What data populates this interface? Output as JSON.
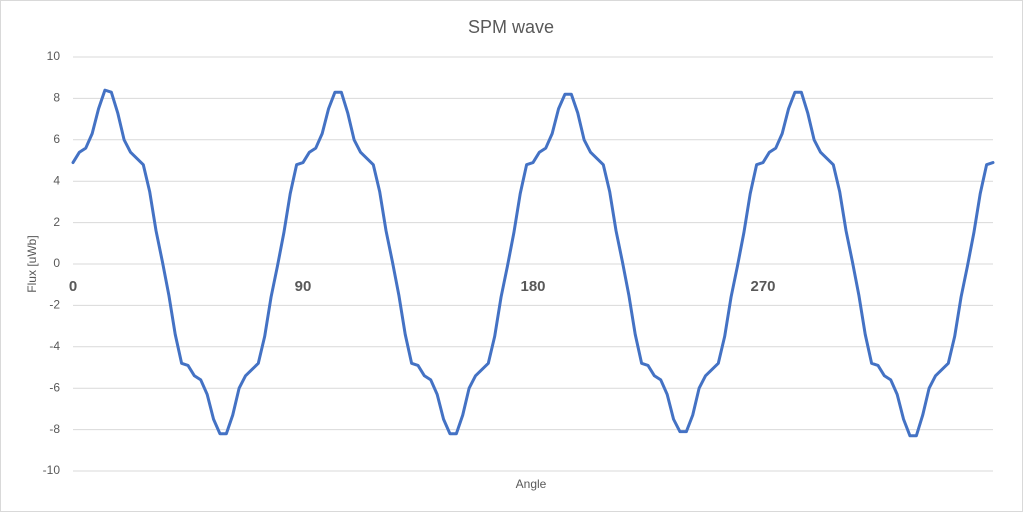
{
  "chart_data": {
    "type": "line",
    "title": "SPM wave",
    "x_label": "Angle",
    "y_label": "Flux [uWb]",
    "xlim": [
      0,
      360
    ],
    "xticks": [
      0,
      90,
      180,
      270
    ],
    "ylim": [
      -10,
      10
    ],
    "yticks": [
      -10,
      -8,
      -6,
      -4,
      -2,
      0,
      2,
      4,
      6,
      8,
      10
    ],
    "grid": true,
    "x": [
      0,
      2.5,
      5,
      7.5,
      10,
      12.5,
      15,
      17.5,
      20,
      22.5,
      25,
      27.5,
      30,
      32.5,
      35,
      37.5,
      40,
      42.5,
      45,
      47.5,
      50,
      52.5,
      55,
      57.5,
      60,
      62.5,
      65,
      67.5,
      70,
      72.5,
      75,
      77.5,
      80,
      82.5,
      85,
      87.5,
      90,
      92.5,
      95,
      97.5,
      100,
      102.5,
      105,
      107.5,
      110,
      112.5,
      115,
      117.5,
      120,
      122.5,
      125,
      127.5,
      130,
      132.5,
      135,
      137.5,
      140,
      142.5,
      145,
      147.5,
      150,
      152.5,
      155,
      157.5,
      160,
      162.5,
      165,
      167.5,
      170,
      172.5,
      175,
      177.5,
      180,
      182.5,
      185,
      187.5,
      190,
      192.5,
      195,
      197.5,
      200,
      202.5,
      205,
      207.5,
      210,
      212.5,
      215,
      217.5,
      220,
      222.5,
      225,
      227.5,
      230,
      232.5,
      235,
      237.5,
      240,
      242.5,
      245,
      247.5,
      250,
      252.5,
      255,
      257.5,
      260,
      262.5,
      265,
      267.5,
      270,
      272.5,
      275,
      277.5,
      280,
      282.5,
      285,
      287.5,
      290,
      292.5,
      295,
      297.5,
      300,
      302.5,
      305,
      307.5,
      310,
      312.5,
      315,
      317.5,
      320,
      322.5,
      325,
      327.5,
      330,
      332.5,
      335,
      337.5,
      340,
      342.5,
      345,
      347.5,
      350,
      352.5,
      355,
      357.5,
      360
    ],
    "series": [
      {
        "name": "Flux",
        "color": "#4472c4",
        "values": [
          4.9,
          5.4,
          5.6,
          6.3,
          7.5,
          8.4,
          8.3,
          7.3,
          6.0,
          5.4,
          5.1,
          4.8,
          3.5,
          1.6,
          0.1,
          -1.5,
          -3.4,
          -4.8,
          -4.9,
          -5.4,
          -5.6,
          -6.3,
          -7.5,
          -8.2,
          -8.2,
          -7.3,
          -6.0,
          -5.4,
          -5.1,
          -4.8,
          -3.5,
          -1.6,
          -0.1,
          1.5,
          3.4,
          4.8,
          4.9,
          5.4,
          5.6,
          6.3,
          7.5,
          8.3,
          8.3,
          7.3,
          6.0,
          5.4,
          5.1,
          4.8,
          3.5,
          1.6,
          0.1,
          -1.5,
          -3.4,
          -4.8,
          -4.9,
          -5.4,
          -5.6,
          -6.3,
          -7.5,
          -8.2,
          -8.2,
          -7.3,
          -6.0,
          -5.4,
          -5.1,
          -4.8,
          -3.5,
          -1.6,
          -0.1,
          1.5,
          3.4,
          4.8,
          4.9,
          5.4,
          5.6,
          6.3,
          7.5,
          8.2,
          8.2,
          7.3,
          6.0,
          5.4,
          5.1,
          4.8,
          3.5,
          1.6,
          0.1,
          -1.5,
          -3.4,
          -4.8,
          -4.9,
          -5.4,
          -5.6,
          -6.3,
          -7.5,
          -8.1,
          -8.1,
          -7.3,
          -6.0,
          -5.4,
          -5.1,
          -4.8,
          -3.5,
          -1.6,
          -0.1,
          1.5,
          3.4,
          4.8,
          4.9,
          5.4,
          5.6,
          6.3,
          7.5,
          8.3,
          8.3,
          7.3,
          6.0,
          5.4,
          5.1,
          4.8,
          3.5,
          1.6,
          0.1,
          -1.5,
          -3.4,
          -4.8,
          -4.9,
          -5.4,
          -5.6,
          -6.3,
          -7.5,
          -8.3,
          -8.3,
          -7.3,
          -6.0,
          -5.4,
          -5.1,
          -4.8,
          -3.5,
          -1.6,
          -0.1,
          1.5,
          3.4,
          4.8,
          4.9
        ]
      }
    ]
  }
}
